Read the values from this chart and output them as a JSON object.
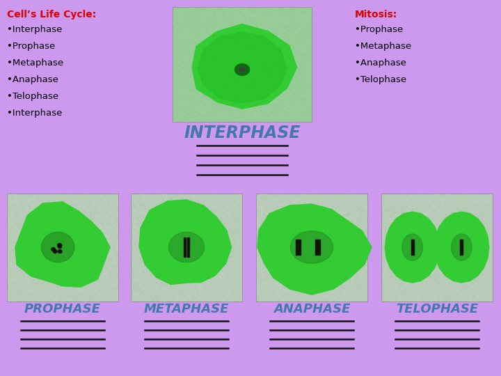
{
  "background_color": "#cc99ee",
  "title_left": "Cell’s Life Cycle:",
  "title_right": "Mitosis:",
  "title_color": "#dd0000",
  "left_items": [
    "•Interphase",
    "•Prophase",
    "•Metaphase",
    "•Anaphase",
    "•Telophase",
    "•Interphase"
  ],
  "right_items": [
    "•Prophase",
    "•Metaphase",
    "•Anaphase",
    "•Telophase"
  ],
  "text_color": "#000000",
  "interphase_label": "INTERPHASE",
  "interphase_label_color": "#4477aa",
  "bottom_labels": [
    "PROPHASE",
    "METAPHASE",
    "ANAPHASE",
    "TELOPHASE"
  ],
  "bottom_label_color": "#4477aa",
  "line_color": "#111111",
  "cell_bg_light": "#bbddbb",
  "cell_green_light": "#55dd44",
  "cell_green_dark": "#22aa22",
  "cell_inner_dark": "#115511",
  "photo_bg": "#aaccaa"
}
